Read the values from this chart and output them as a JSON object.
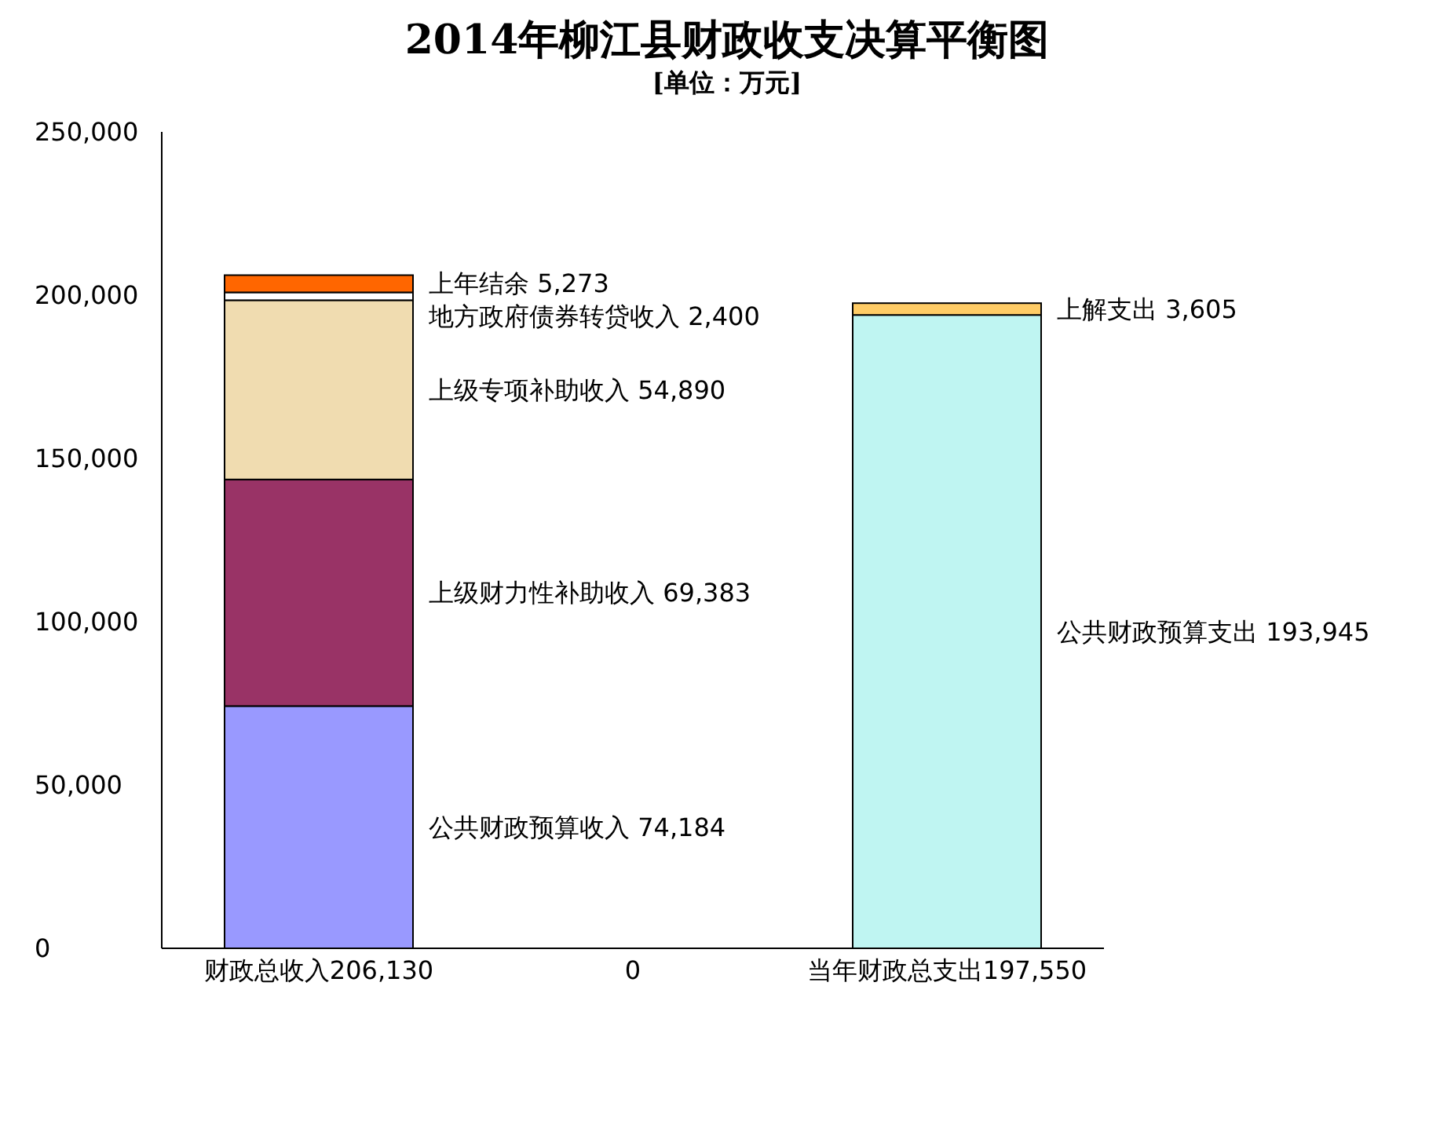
{
  "chart_data": {
    "type": "bar",
    "title": "2014年柳江县财政收支决算平衡图",
    "subtitle": "[单位：万元]",
    "stacked": true,
    "categories": [
      "财政总收入206,130",
      "0",
      "当年财政总支出197,550"
    ],
    "series": [
      {
        "name": "公共财政预算收入",
        "color": "#9999ff",
        "values": [
          74184,
          null,
          null
        ],
        "value_labels": [
          "74,184",
          null,
          null
        ]
      },
      {
        "name": "上级财力性补助收入",
        "color": "#993366",
        "values": [
          69383,
          null,
          null
        ],
        "value_labels": [
          "69,383",
          null,
          null
        ]
      },
      {
        "name": "上级专项补助收入",
        "color": "#f0dcb0",
        "values": [
          54890,
          null,
          null
        ],
        "value_labels": [
          "54,890",
          null,
          null
        ]
      },
      {
        "name": "地方政府债券转贷收入",
        "color": "#ffffff",
        "values": [
          2400,
          null,
          null
        ],
        "value_labels": [
          "2,400",
          null,
          null
        ]
      },
      {
        "name": "上年结余",
        "color": "#ff6600",
        "values": [
          5273,
          null,
          null
        ],
        "value_labels": [
          "5,273",
          null,
          null
        ]
      },
      {
        "name": "公共财政预算支出",
        "color": "#bff5f2",
        "values": [
          null,
          null,
          193945
        ],
        "value_labels": [
          null,
          null,
          "193,945"
        ]
      },
      {
        "name": "上解支出",
        "color": "#ffcc66",
        "values": [
          null,
          null,
          3605
        ],
        "value_labels": [
          null,
          null,
          "3,605"
        ]
      }
    ],
    "ylim": [
      0,
      250000
    ],
    "yticks": [
      {
        "value": 0,
        "label": "0"
      },
      {
        "value": 50000,
        "label": "50,000"
      },
      {
        "value": 100000,
        "label": "100,000"
      },
      {
        "value": 150000,
        "label": "150,000"
      },
      {
        "value": 200000,
        "label": "200,000"
      },
      {
        "value": 250000,
        "label": "250,000"
      }
    ],
    "grid": false,
    "legend": false
  }
}
